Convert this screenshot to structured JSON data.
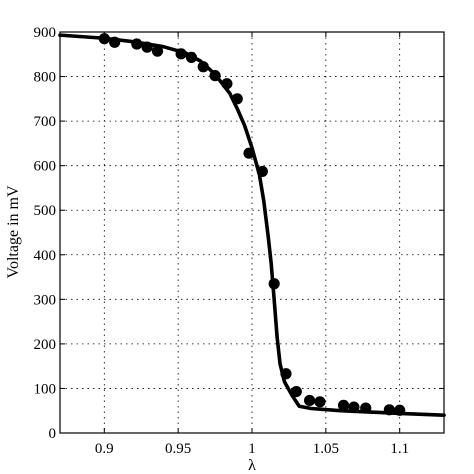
{
  "chart_data": {
    "type": "scatter",
    "title": "",
    "xlabel": "λ",
    "ylabel": "Voltage in mV",
    "xlim": [
      0.87,
      1.13
    ],
    "ylim": [
      0,
      900
    ],
    "grid": true,
    "xticks": [
      0.9,
      0.95,
      1,
      1.05,
      1.1
    ],
    "xtick_labels": [
      "0.9",
      "0.95",
      "1",
      "1.05",
      "1.1"
    ],
    "yticks": [
      0,
      100,
      200,
      300,
      400,
      500,
      600,
      700,
      800,
      900
    ],
    "ytick_labels": [
      "0",
      "100",
      "200",
      "300",
      "400",
      "500",
      "600",
      "700",
      "800",
      "900"
    ],
    "series": [
      {
        "kind": "points",
        "x": [
          0.9,
          0.907,
          0.922,
          0.929,
          0.936,
          0.952,
          0.959,
          0.967,
          0.975,
          0.983,
          0.99,
          0.998,
          1.007,
          1.015,
          1.023,
          1.03,
          1.039,
          1.046,
          1.062,
          1.069,
          1.077,
          1.093,
          1.1
        ],
        "y": [
          885,
          877,
          873,
          866,
          857,
          851,
          843,
          822,
          802,
          784,
          750,
          628,
          587,
          335,
          133,
          93,
          73,
          70,
          62,
          58,
          56,
          52,
          51
        ]
      },
      {
        "kind": "line",
        "x": [
          0.87,
          0.9,
          0.92,
          0.94,
          0.955,
          0.965,
          0.975,
          0.985,
          0.99,
          0.995,
          1.0,
          1.005,
          1.008,
          1.011,
          1.013,
          1.015,
          1.017,
          1.019,
          1.022,
          1.027,
          1.032,
          1.04,
          1.06,
          1.08,
          1.1,
          1.13
        ],
        "y": [
          893,
          886,
          878,
          867,
          853,
          835,
          805,
          762,
          728,
          690,
          640,
          580,
          520,
          440,
          380,
          300,
          215,
          155,
          115,
          85,
          60,
          55,
          50,
          47,
          44,
          40
        ]
      }
    ]
  }
}
